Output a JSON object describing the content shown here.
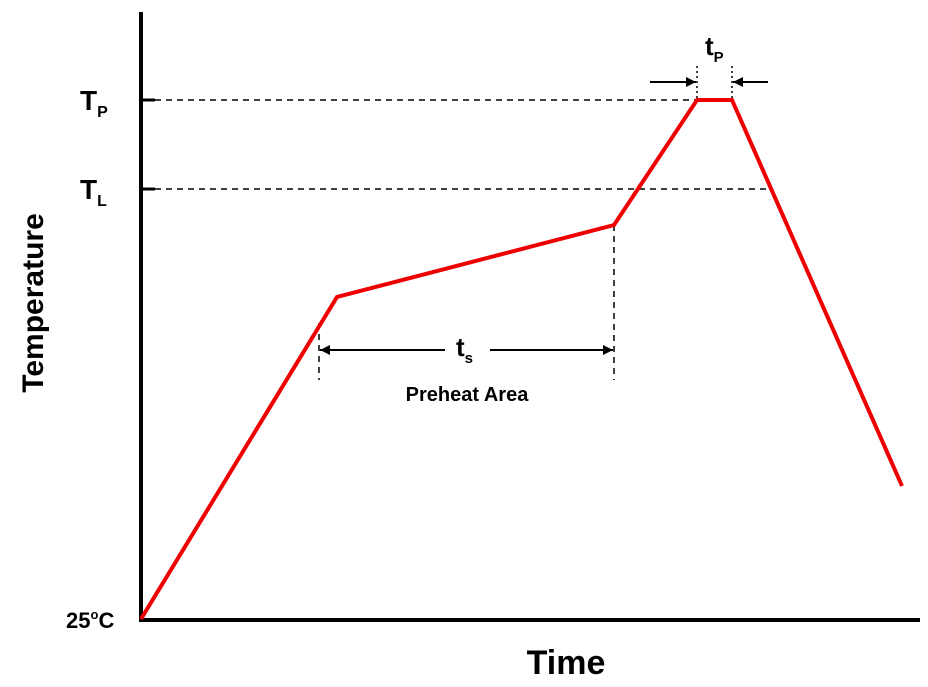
{
  "diagram": {
    "y_axis_label": "Temperature",
    "x_axis_label": "Time",
    "tick_tp_main": "T",
    "tick_tp_sub": "P",
    "tick_tl_main": "T",
    "tick_tl_sub": "L",
    "tick_25_num": "25",
    "tick_25_deg": "o",
    "tick_25_unit": "C",
    "ts_main": "t",
    "ts_sub": "s",
    "tp_main": "t",
    "tp_sub": "P",
    "preheat_label": "Preheat Area",
    "profile_color": "#ee0000",
    "axis_color": "#000000"
  }
}
